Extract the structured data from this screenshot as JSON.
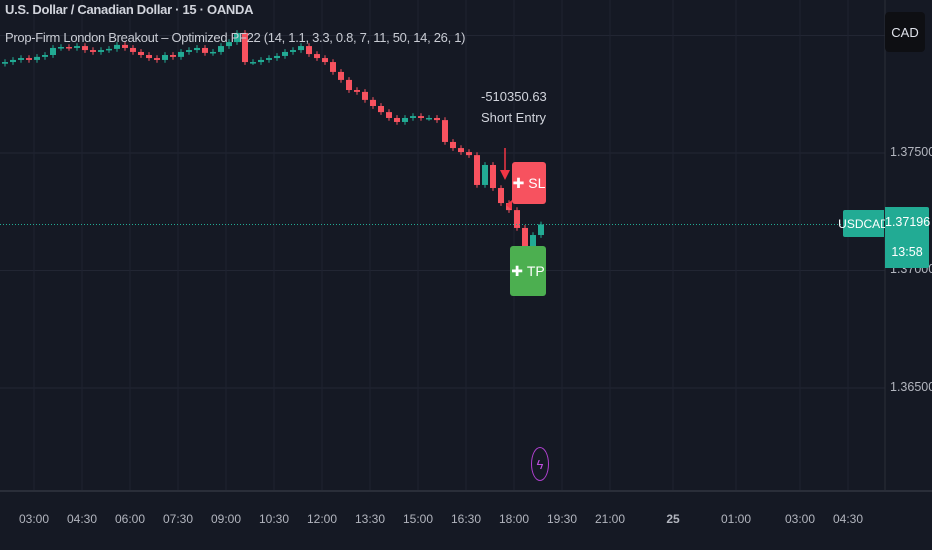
{
  "header": {
    "title": "U.S. Dollar / Canadian Dollar · 15 · OANDA",
    "indicator": "Prop-Firm London Breakout – Optimized PF22 (14, 1.1, 3.3, 0.8, 7, 11, 50, 14, 26, 1)"
  },
  "currency_button": "CAD",
  "annotations": {
    "value": "-510350.63",
    "entry": "Short Entry",
    "sl": "SL",
    "tp": "TP"
  },
  "last_price": {
    "symbol": "USDCAD",
    "price": "1.37196",
    "countdown": "13:58"
  },
  "colors": {
    "up": "#22ab94",
    "down": "#f7525f",
    "sl": "#f7525f",
    "tp": "#4caf50",
    "arrow": "#f23645",
    "event": "#b040d0"
  },
  "event_icon": "lightning-icon",
  "chart_data": {
    "type": "candlestick",
    "ylim": [
      1.3625,
      1.3815
    ],
    "y_ticks": [
      "1.37500",
      "1.37000",
      "1.36500"
    ],
    "x_ticks": [
      "03:00",
      "04:30",
      "06:00",
      "07:30",
      "09:00",
      "10:30",
      "12:00",
      "13:30",
      "15:00",
      "16:30",
      "18:00",
      "19:30",
      "21:00",
      "25",
      "01:00",
      "03:00",
      "04:30"
    ],
    "grid": true,
    "interval_minutes": 15,
    "first_open": 1.3788,
    "closes": [
      1.37887,
      1.37896,
      1.37904,
      1.37896,
      1.37909,
      1.37917,
      1.37947,
      1.37951,
      1.37947,
      1.37955,
      1.37938,
      1.3793,
      1.37938,
      1.37943,
      1.3796,
      1.37947,
      1.3793,
      1.37917,
      1.37904,
      1.37896,
      1.37917,
      1.37909,
      1.3793,
      1.37938,
      1.37947,
      1.37926,
      1.3793,
      1.37955,
      1.37972,
      1.38011,
      1.37887,
      1.37887,
      1.37896,
      1.37904,
      1.37913,
      1.3793,
      1.37938,
      1.37955,
      1.37921,
      1.37904,
      1.37887,
      1.37845,
      1.37811,
      1.37768,
      1.3776,
      1.37726,
      1.377,
      1.37674,
      1.37649,
      1.37632,
      1.37649,
      1.37657,
      1.37649,
      1.37649,
      1.3764,
      1.37547,
      1.37521,
      1.37504,
      1.37491,
      1.37364,
      1.37449,
      1.37351,
      1.37287,
      1.37257,
      1.37181,
      1.37087,
      1.37151,
      1.37196
    ]
  }
}
